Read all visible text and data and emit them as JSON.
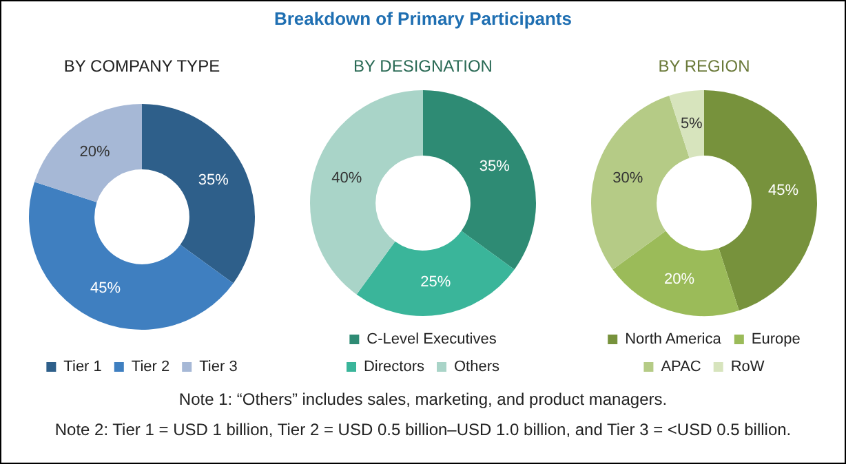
{
  "chart_data": [
    {
      "type": "donut",
      "title": "BY COMPANY TYPE",
      "categories": [
        "Tier 1",
        "Tier 2",
        "Tier 3"
      ],
      "values": [
        35,
        45,
        20
      ],
      "colors": [
        "#2e5f8a",
        "#3f7fc0",
        "#a6b8d6"
      ],
      "value_labels": [
        "35%",
        "45%",
        "20%"
      ],
      "legend": "bottom"
    },
    {
      "type": "donut",
      "title": "BY DESIGNATION",
      "categories": [
        "C-Level Executives",
        "Directors",
        "Others"
      ],
      "values": [
        35,
        25,
        40
      ],
      "colors": [
        "#2e8b74",
        "#3ab59a",
        "#a9d4c8"
      ],
      "value_labels": [
        "35%",
        "25%",
        "40%"
      ],
      "legend": "bottom"
    },
    {
      "type": "donut",
      "title": "BY REGION",
      "categories": [
        "North America",
        "Europe",
        "APAC",
        "RoW"
      ],
      "values": [
        45,
        20,
        30,
        5
      ],
      "colors": [
        "#77923c",
        "#9bbb59",
        "#b5cb86",
        "#d7e4bd"
      ],
      "value_labels": [
        "45%",
        "20%",
        "30%",
        "5%"
      ],
      "legend": "bottom"
    },
    {
      "type": "other",
      "title": "Breakdown of Primary Participants",
      "annotations": [
        "Note 1: “Others” includes sales, marketing, and product managers.",
        "Note 2: Tier 1 = USD 1 billion, Tier 2 = USD 0.5 billion–USD 1.0 billion, and Tier 3 = <USD 0.5 billion."
      ]
    }
  ]
}
